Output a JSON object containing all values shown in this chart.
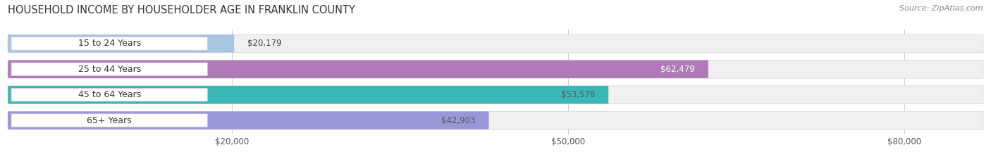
{
  "title": "HOUSEHOLD INCOME BY HOUSEHOLDER AGE IN FRANKLIN COUNTY",
  "source": "Source: ZipAtlas.com",
  "categories": [
    "15 to 24 Years",
    "25 to 44 Years",
    "45 to 64 Years",
    "65+ Years"
  ],
  "values": [
    20179,
    62479,
    53578,
    42903
  ],
  "labels": [
    "$20,179",
    "$62,479",
    "$53,578",
    "$42,903"
  ],
  "bar_colors": [
    "#a8c4e0",
    "#b07ab8",
    "#3ab8b8",
    "#9898d8"
  ],
  "label_colors": [
    "#555555",
    "#ffffff",
    "#555555",
    "#555555"
  ],
  "xmax": 87000,
  "xticks": [
    20000,
    50000,
    80000
  ],
  "xtick_labels": [
    "$20,000",
    "$50,000",
    "$80,000"
  ],
  "background_color": "#ffffff",
  "title_fontsize": 10.5,
  "source_fontsize": 8,
  "label_fontsize": 8.5,
  "category_fontsize": 9
}
